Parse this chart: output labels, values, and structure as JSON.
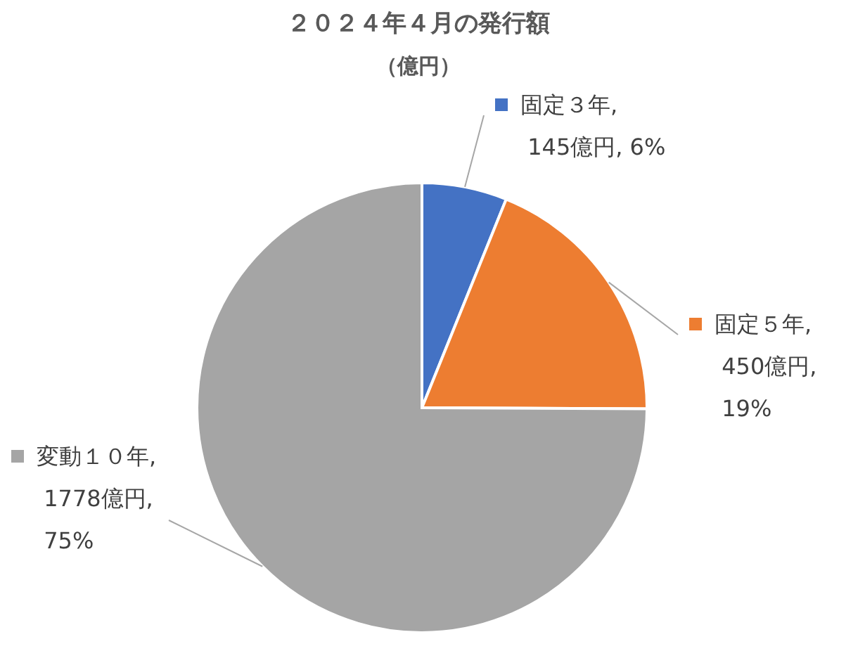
{
  "chart_data": {
    "type": "pie",
    "title": "２０２４年４月の発行額",
    "subtitle": "（億円）",
    "categories": [
      "固定３年",
      "固定５年",
      "変動１０年"
    ],
    "values": [
      145,
      450,
      1778
    ],
    "colors": [
      "#4472c4",
      "#ed7d31",
      "#a5a5a5"
    ],
    "legend": "right",
    "value_labels": [
      ", 145億円, 6%",
      ", 450億円, 19%",
      ", 1778億円, 75%"
    ]
  }
}
